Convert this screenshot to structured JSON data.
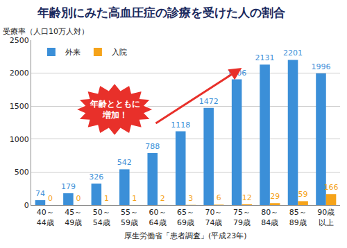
{
  "chart_data": {
    "type": "bar",
    "title": "年齢別にみた高血圧症の診療を受けた人の割合",
    "y_label": "受療率（人口10万人対）",
    "categories": [
      "40～44歳",
      "45～49歳",
      "50～54歳",
      "55～59歳",
      "60～64歳",
      "65～69歳",
      "70～74歳",
      "75～79歳",
      "80～84歳",
      "85～89歳",
      "90歳以上"
    ],
    "series": [
      {
        "name": "外来",
        "color": "#3b8fd8",
        "values": [
          74,
          179,
          326,
          542,
          788,
          1118,
          1472,
          1906,
          2131,
          2201,
          1996
        ]
      },
      {
        "name": "入院",
        "color": "#f5a31a",
        "values": [
          0,
          0,
          1,
          1,
          2,
          3,
          6,
          12,
          29,
          59,
          166
        ]
      }
    ],
    "ylim": [
      0,
      2500
    ],
    "yticks": [
      0,
      500,
      1000,
      1500,
      2000,
      2500
    ],
    "grid": true,
    "legend": "upper left",
    "data_labels": true,
    "annotations": [
      {
        "text": [
          "年齢とともに",
          "増加！"
        ]
      }
    ],
    "source": "厚生労働省「患者調査」(平成23年)"
  }
}
